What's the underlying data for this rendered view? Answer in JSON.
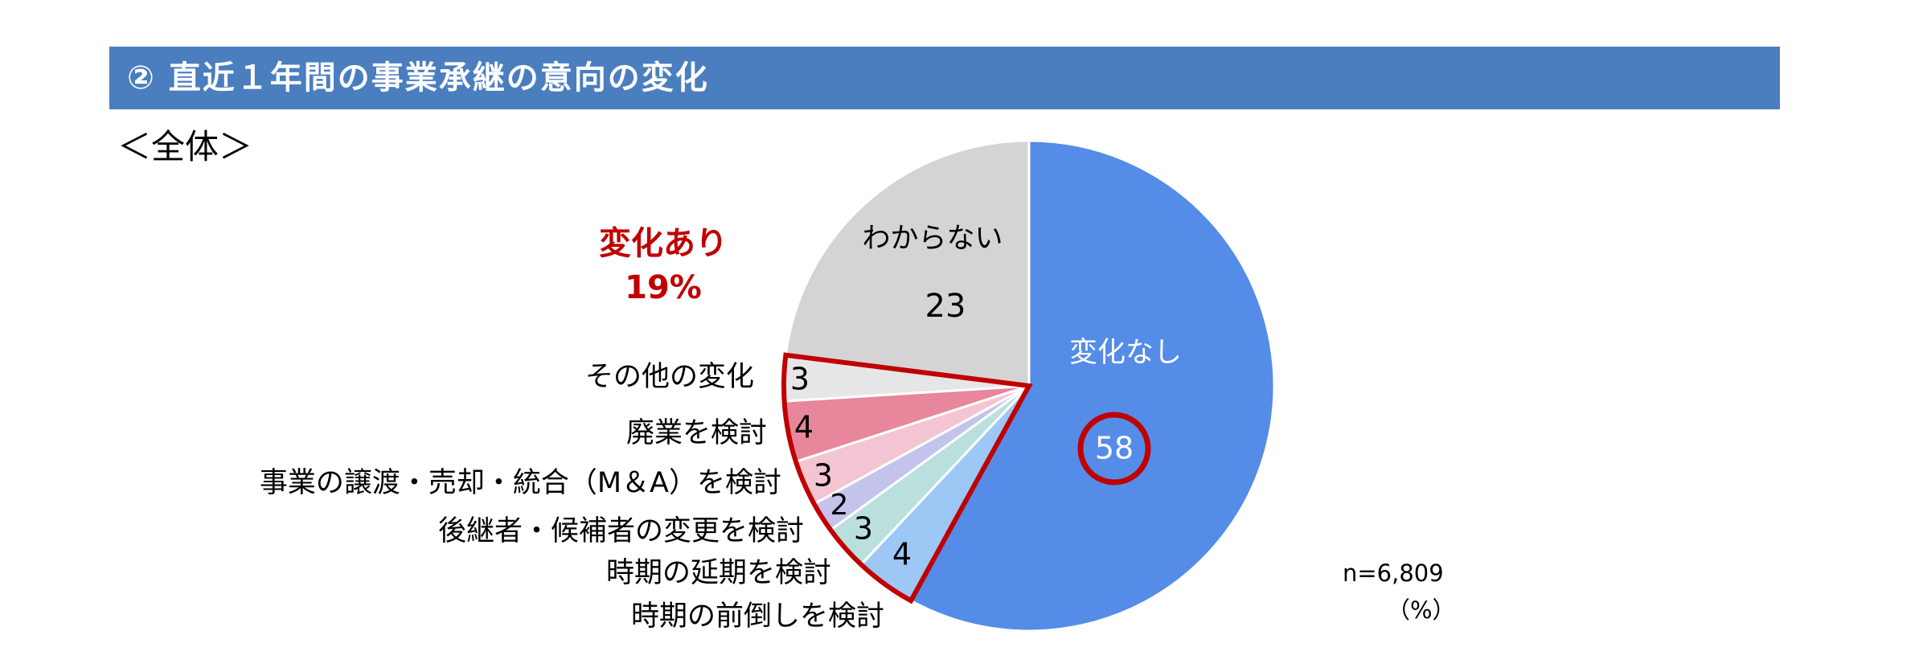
{
  "header": {
    "title": "② 直近１年間の事業承継の意向の変化"
  },
  "subtitle": "＜全体＞",
  "chart_data": {
    "type": "pie",
    "start_angle_deg": 0,
    "direction": "clockwise",
    "slices": [
      {
        "label": "変化なし",
        "value": 58,
        "color": "#548ce8",
        "value_color": "#ffffff",
        "circled": true
      },
      {
        "label": "時期の前倒しを検討",
        "value": 4,
        "color": "#9dc7f5",
        "value_color": "#000000"
      },
      {
        "label": "後継者・候補者の変更を検討",
        "value": 3,
        "color": "#b9e0dc",
        "value_color": "#000000"
      },
      {
        "label": "時期の延期を検討",
        "value": 2,
        "color": "#c3c3ec",
        "value_color": "#000000"
      },
      {
        "label": "事業の譲渡・売却・統合（M＆A）を検討",
        "value": 3,
        "color": "#f3c5d2",
        "value_color": "#000000"
      },
      {
        "label": "廃業を検討",
        "value": 4,
        "color": "#e8869c",
        "value_color": "#000000"
      },
      {
        "label": "その他の変化",
        "value": 3,
        "color": "#e6e6e6",
        "value_color": "#000000"
      },
      {
        "label": "わからない",
        "value": 23,
        "color": "#d4d4d4",
        "value_color": "#000000"
      }
    ],
    "group": {
      "label": "変化あり",
      "value_text": "19%",
      "color": "#c00000"
    },
    "n_text": "n=6,809",
    "unit_text": "（%）"
  }
}
